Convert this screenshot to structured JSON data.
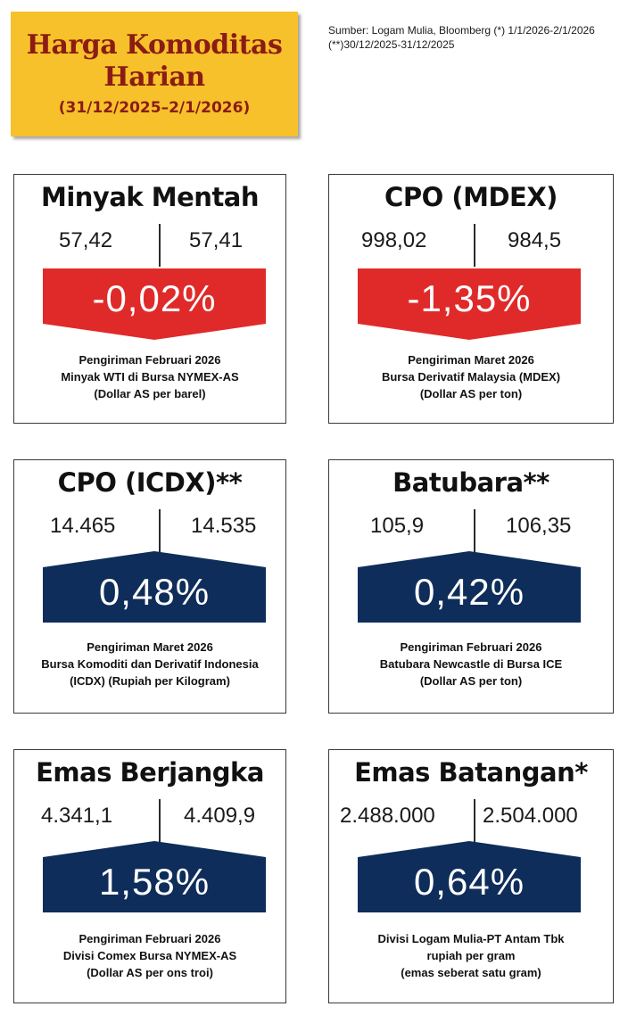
{
  "header": {
    "title_line1": "Harga Komoditas",
    "title_line2": "Harian",
    "date_range": "(31/12/2025–2/1/2026)"
  },
  "source": "Sumber: Logam Mulia, Bloomberg  (*) 1/1/2026-2/1/2026 (**)30/12/2025-31/12/2025",
  "colors": {
    "title_bg": "#f6c12a",
    "title_text": "#8b1c14",
    "down": "#e02a2a",
    "up": "#0e2d5a"
  },
  "cards": [
    {
      "name": "Minyak Mentah",
      "prev": "57,42",
      "curr": "57,41",
      "change": "-0,02%",
      "direction": "down",
      "desc": [
        "Pengiriman Februari 2026",
        "Minyak WTI di Bursa NYMEX-AS",
        "(Dollar AS per barel)"
      ]
    },
    {
      "name": "CPO (MDEX)",
      "prev": "998,02",
      "curr": "984,5",
      "change": "-1,35%",
      "direction": "down",
      "desc": [
        "Pengiriman Maret 2026",
        "Bursa Derivatif Malaysia (MDEX)",
        "(Dollar AS per ton)"
      ]
    },
    {
      "name": "CPO (ICDX)**",
      "prev": "14.465",
      "curr": "14.535",
      "change": "0,48%",
      "direction": "up",
      "desc": [
        "Pengiriman Maret 2026",
        "Bursa Komoditi dan Derivatif Indonesia",
        "(ICDX) (Rupiah per Kilogram)"
      ]
    },
    {
      "name": "Batubara**",
      "prev": "105,9",
      "curr": "106,35",
      "change": "0,42%",
      "direction": "up",
      "desc": [
        "Pengiriman Februari 2026",
        "Batubara Newcastle di Bursa ICE",
        "(Dollar AS per ton)"
      ]
    },
    {
      "name": "Emas Berjangka",
      "prev": "4.341,1",
      "curr": "4.409,9",
      "change": "1,58%",
      "direction": "up",
      "desc": [
        "Pengiriman Februari 2026",
        "Divisi Comex Bursa NYMEX-AS",
        "(Dollar AS per ons troi)"
      ]
    },
    {
      "name": "Emas Batangan*",
      "prev": "2.488.000",
      "curr": "2.504.000",
      "change": "0,64%",
      "direction": "up",
      "desc": [
        "Divisi Logam Mulia-PT Antam Tbk",
        "rupiah per gram",
        "(emas seberat satu gram)"
      ]
    }
  ]
}
